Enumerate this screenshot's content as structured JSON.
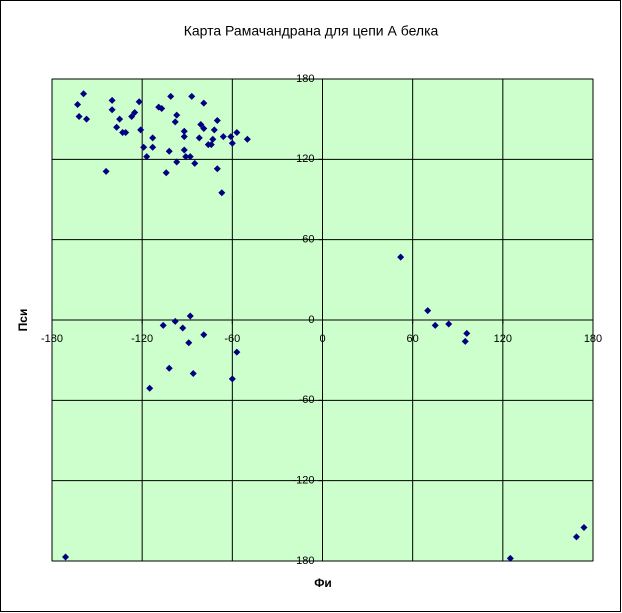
{
  "chart_data": {
    "type": "scatter",
    "title": "Карта Рамачандрана для цепи А белка",
    "x_label": "Фи",
    "y_label": "Пси",
    "x": [
      -171,
      -163,
      -162,
      -159,
      -157,
      -144,
      -140,
      -140,
      -137,
      -135,
      -133,
      -131,
      -127,
      -125,
      -122,
      -121,
      -119,
      -117,
      -115,
      -113,
      -113,
      -109,
      -107,
      -106,
      -104,
      -102,
      -102,
      -101,
      -98,
      -98,
      -97,
      -97,
      -93,
      -92,
      -92,
      -92,
      -91,
      -89,
      -88,
      -88,
      -87,
      -86,
      -85,
      -82,
      -81,
      -79,
      -79,
      -79,
      -76,
      -74,
      -73,
      -72,
      -70,
      -70,
      -67,
      -66,
      -61,
      -60,
      -60,
      -57,
      -57,
      -50,
      52,
      70,
      75,
      84,
      95,
      96,
      125,
      169,
      174
    ],
    "values": [
      -177,
      161,
      152,
      169,
      150,
      111,
      164,
      157,
      144,
      150,
      140,
      140,
      152,
      155,
      163,
      142,
      129,
      122,
      -51,
      136,
      129,
      159,
      158,
      -4,
      110,
      -36,
      126,
      167,
      148,
      -1,
      153,
      118,
      -6,
      141,
      137,
      127,
      122,
      -17,
      3,
      122,
      167,
      -40,
      117,
      136,
      146,
      -11,
      143,
      162,
      131,
      131,
      135,
      142,
      149,
      113,
      95,
      137,
      137,
      132,
      -44,
      140,
      -24,
      135,
      47,
      7,
      -4,
      -3,
      -16,
      -10,
      -178,
      -162,
      -155
    ],
    "color": "#000080",
    "xlim": [
      -180,
      180
    ],
    "xticks": [
      -180,
      -120,
      -60,
      0,
      60,
      120,
      180
    ],
    "ylim": [
      -180,
      180
    ],
    "yticks": [
      -180,
      -120,
      -60,
      0,
      60,
      120,
      180
    ],
    "grid": true,
    "background": "#ccffcc"
  }
}
